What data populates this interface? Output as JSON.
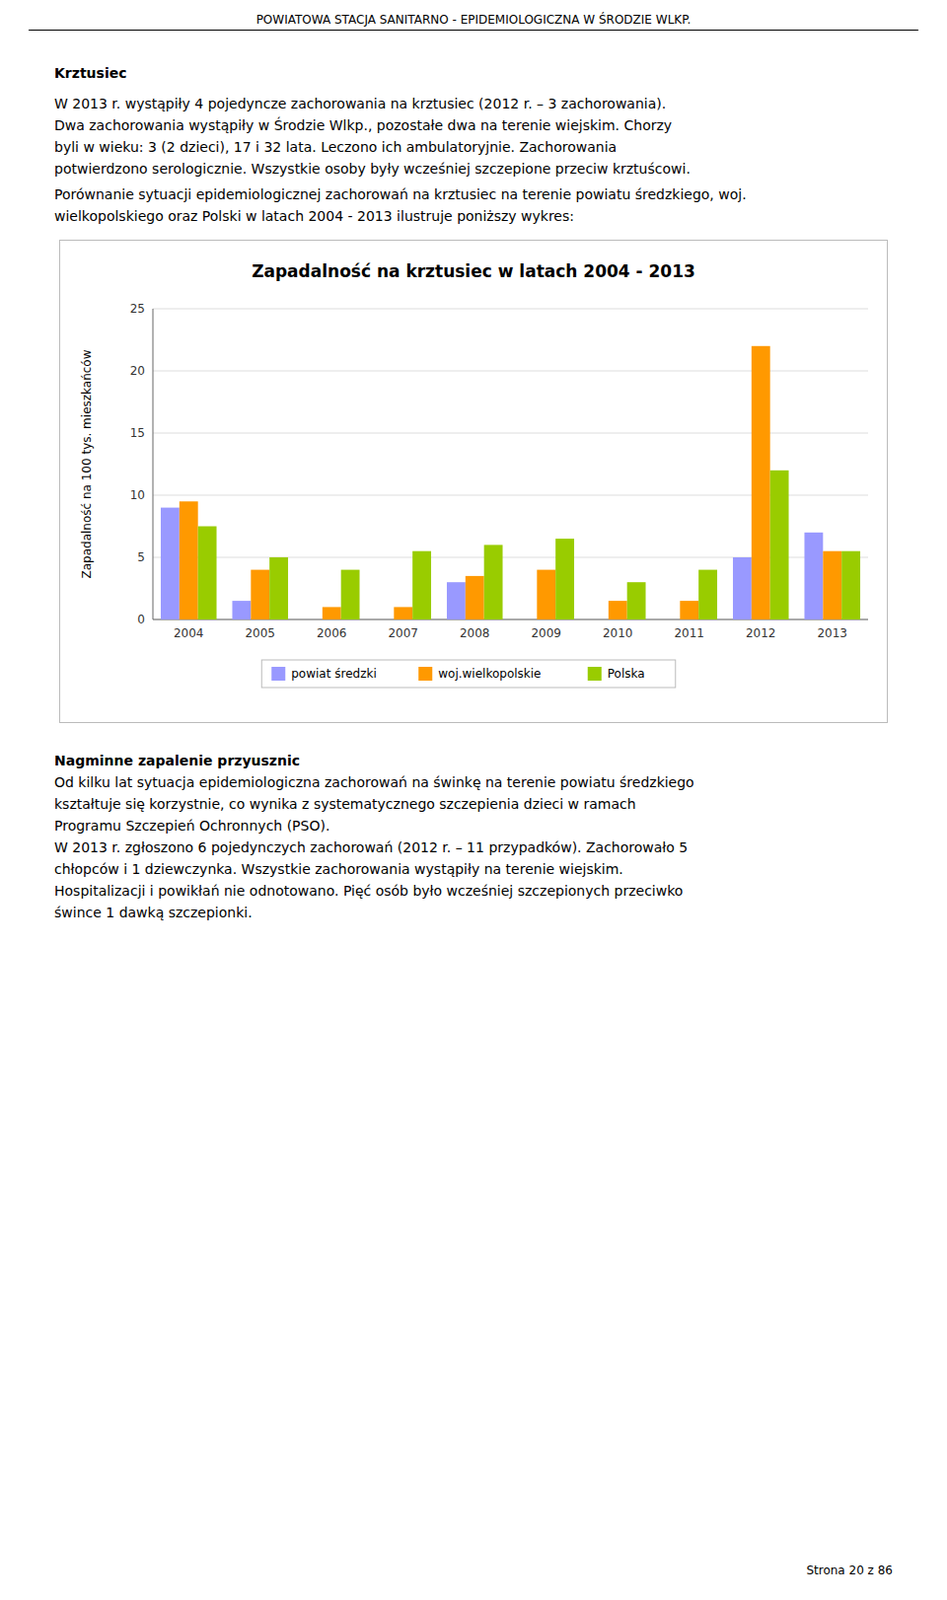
{
  "header": "POWIATOWA STACJA SANITARNO - EPIDEMIOLOGICZNA W ŚRODZIE WLKP.",
  "heading": "Krztusiec",
  "paragraphs": [
    "W 2013 r. wystąpiły 4 pojedyncze zachorowania na krztusiec (2012 r. – 3 zachorowania).",
    "Dwa zachorowania wystąpiły w Środzie Wlkp., pozostałe dwa na terenie wiejskim. Chorzy",
    "byli w wieku: 3 (2 dzieci), 17 i 32 lata. Leczono ich ambulatoryjnie. Zachorowania",
    "potwierdzono serologicznie. Wszystkie osoby były wcześniej szczepione przeciw krztuścowi.",
    "Porównanie sytuacji epidemiologicznej zachorowań na krztusiec na terenie powiatu średzkiego, woj.",
    "wielkopolskiego oraz Polski w latach 2004 - 2013 ilustruje poniższy wykres:"
  ],
  "chart_data": {
    "type": "bar",
    "title": "Zapadalność na krztusiec w latach 2004 - 2013",
    "y_label": "Zapadalność na 100 tys. mieszkańców",
    "categories": [
      "2004",
      "2005",
      "2006",
      "2007",
      "2008",
      "2009",
      "2010",
      "2011",
      "2012",
      "2013"
    ],
    "series": [
      {
        "name": "powiat średzki",
        "color": "#9999FF",
        "values": [
          9.0,
          1.5,
          0.0,
          0.0,
          3.0,
          0.0,
          0.0,
          0.0,
          5.0,
          7.0
        ]
      },
      {
        "name": "woj.wielkopolskie",
        "color": "#FF9900",
        "values": [
          9.5,
          4.0,
          1.0,
          1.0,
          3.5,
          4.0,
          1.5,
          1.5,
          22.0,
          5.5
        ]
      },
      {
        "name": "Polska",
        "color": "#99CC00",
        "values": [
          7.5,
          5.0,
          4.0,
          5.5,
          6.0,
          6.5,
          3.0,
          4.0,
          12.0,
          5.5
        ]
      }
    ],
    "ylim": [
      0,
      25
    ],
    "yticks": [
      0,
      5,
      10,
      15,
      20,
      25
    ],
    "grid": true,
    "legend": "bottom"
  },
  "bottom_heading": "Nagminne zapalenie przyusznic",
  "bottom_lines": [
    "Od kilku lat sytuacja epidemiologiczna zachorowań na świnkę na terenie powiatu średzkiego",
    "kształtuje się korzystnie, co wynika z systematycznego szczepienia dzieci w ramach",
    "Programu Szczepień Ochronnych (PSO).",
    "W 2013 r. zgłoszono 6 pojedynczych zachorowań (2012 r. – 11 przypadków). Zachorowało 5",
    "chłopców i 1 dziewczynka. Wszystkie zachorowania wystąpiły na terenie wiejskim.",
    "Hospitalizacji i powikłań nie odnotowano. Pięć osób było wcześniej szczepionych przeciwko",
    "śwince 1 dawką szczepionki."
  ],
  "page_number": "Strona 20 z 86"
}
